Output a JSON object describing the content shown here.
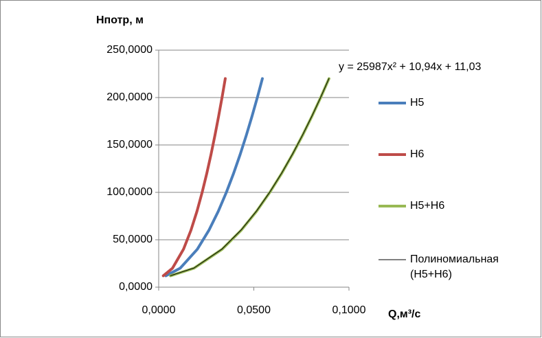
{
  "chart_data": {
    "type": "line",
    "y_label": "Нпотр, м",
    "x_label": "Q,м³/с",
    "annotation": "y = 25987x² + 10,94x + 11,03",
    "xlim": [
      0,
      0.1
    ],
    "xticks": [
      {
        "value": 0,
        "label": "0,0000"
      },
      {
        "value": 0.05,
        "label": "0,0500"
      },
      {
        "value": 0.1,
        "label": "0,1000"
      }
    ],
    "ylim": [
      0,
      250
    ],
    "yticks": [
      {
        "value": 0,
        "label": "0,0000"
      },
      {
        "value": 50,
        "label": "50,0000"
      },
      {
        "value": 100,
        "label": "100,0000"
      },
      {
        "value": 150,
        "label": "150,0000"
      },
      {
        "value": 200,
        "label": "200,0000"
      },
      {
        "value": 250,
        "label": "250,0000"
      }
    ],
    "grid": true,
    "series": [
      {
        "name": "Н5",
        "color": "#4a7ebb",
        "width": 4,
        "x": [
          0.00377,
          0.01131,
          0.0203,
          0.02639,
          0.03131,
          0.03556,
          0.03936,
          0.04282,
          0.04602,
          0.04901,
          0.05183,
          0.0545
        ],
        "values": [
          12,
          20,
          40,
          60,
          80,
          100,
          120,
          140,
          160,
          180,
          200,
          220
        ]
      },
      {
        "name": "Н6",
        "color": "#be4b48",
        "width": 4,
        "x": [
          0.00242,
          0.00726,
          0.01304,
          0.01695,
          0.02011,
          0.02284,
          0.02528,
          0.0275,
          0.02955,
          0.03147,
          0.03329,
          0.035
        ],
        "values": [
          12,
          20,
          40,
          60,
          80,
          100,
          120,
          140,
          160,
          180,
          200,
          220
        ]
      },
      {
        "name": "Н5+Н6",
        "color": "#98b954",
        "width": 4,
        "x": [
          0.00619,
          0.01857,
          0.03334,
          0.04334,
          0.05142,
          0.0584,
          0.06464,
          0.07032,
          0.07557,
          0.08048,
          0.08512,
          0.0895
        ],
        "values": [
          12,
          20,
          40,
          60,
          80,
          100,
          120,
          140,
          160,
          180,
          200,
          220
        ]
      },
      {
        "name": "Полиномиальная (Н5+Н6)",
        "color": "#000000",
        "width": 1,
        "x": [
          0.00619,
          0.01857,
          0.03334,
          0.04334,
          0.05142,
          0.0584,
          0.06464,
          0.07032,
          0.07557,
          0.08048,
          0.08512,
          0.0895
        ],
        "values": [
          12.09,
          20.19,
          40.28,
          60.31,
          80.3,
          100.3,
          120.32,
          140.3,
          160.27,
          180.23,
          200.25,
          220.17
        ]
      }
    ]
  }
}
